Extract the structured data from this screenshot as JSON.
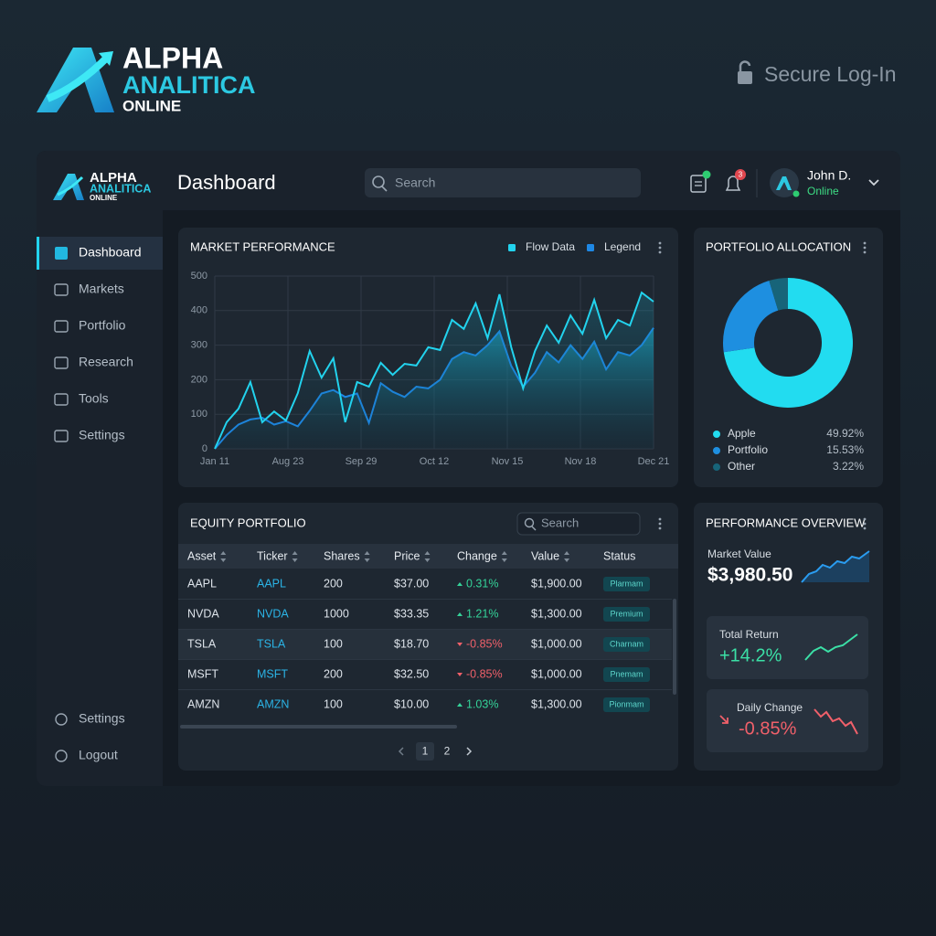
{
  "header": {
    "logo": {
      "line1": "ALPHA",
      "line2": "ANALITICA",
      "line3": "ONLINE"
    },
    "secure_login": "Secure Log-In"
  },
  "sidebar": {
    "logo": {
      "line1": "ALPHA",
      "line2": "ANALITICA",
      "line3": "ONLINE"
    },
    "nav": [
      "Dashboard",
      "Markets",
      "Portfolio",
      "Research",
      "Tools",
      "Settings"
    ],
    "active": 0,
    "bottom_nav": [
      "Settings",
      "Logout"
    ]
  },
  "topbar": {
    "title": "Dashboard",
    "search_placeholder": "Search",
    "notification_badge": "3",
    "user": {
      "name": "John D.",
      "status": "Online"
    }
  },
  "market_performance": {
    "title": "MARKET PERFORMANCE",
    "chart_data": {
      "type": "area",
      "x_labels": [
        "Jan 11",
        "Aug 23",
        "Sep 29",
        "Oct 12",
        "Nov 15",
        "Nov 18",
        "Dec 21"
      ],
      "series": [
        {
          "name": "Flow Data",
          "color": "#22d3ee",
          "values": [
            0,
            77,
            116,
            193,
            77,
            108,
            82,
            161,
            283,
            206,
            262,
            77,
            193,
            180,
            249,
            214,
            246,
            241,
            294,
            286,
            373,
            347,
            421,
            320,
            447,
            294,
            175,
            283,
            357,
            307,
            386,
            333,
            431,
            320,
            373,
            357,
            452,
            426
          ]
        },
        {
          "name": "Legend",
          "color": "#1e88e5",
          "values": [
            0,
            40,
            70,
            85,
            90,
            70,
            80,
            65,
            110,
            160,
            170,
            150,
            160,
            75,
            190,
            165,
            150,
            180,
            175,
            200,
            260,
            280,
            270,
            300,
            340,
            240,
            180,
            220,
            280,
            250,
            300,
            260,
            310,
            230,
            280,
            270,
            300,
            350
          ]
        }
      ],
      "ylim": [
        0,
        500
      ],
      "yticks": [
        0,
        100,
        200,
        300,
        400,
        500
      ],
      "grid": true
    }
  },
  "portfolio_allocation": {
    "title": "PORTFOLIO ALLOCATION",
    "chart_data": {
      "type": "donut",
      "categories": [
        "Apple",
        "Portfolio",
        "Other"
      ],
      "values": [
        49.92,
        15.53,
        3.22
      ],
      "value_labels": [
        "49.92%",
        "15.53%",
        "3.22%"
      ],
      "colors": [
        "#22dcf0",
        "#1e8fe0",
        "#176479"
      ]
    }
  },
  "equity_portfolio": {
    "title": "EQUITY PORTFOLIO",
    "search_placeholder": "Search",
    "columns": [
      "Asset",
      "Ticker",
      "Shares",
      "Price",
      "Change",
      "Value",
      "Status"
    ],
    "rows": [
      [
        "AAPL",
        "AAPL",
        "200",
        "$37.00",
        "0.31%",
        "$1,900.00",
        "Plarmam"
      ],
      [
        "NVDA",
        "NVDA",
        "1000",
        "$33.35",
        "1.21%",
        "$1,300.00",
        "Premium"
      ],
      [
        "TSLA",
        "TSLA",
        "100",
        "$18.70",
        "-0.85%",
        "$1,000.00",
        "Charnam"
      ],
      [
        "MSFT",
        "MSFT",
        "200",
        "$32.50",
        "-0.85%",
        "$1,000.00",
        "Pnemam"
      ],
      [
        "AMZN",
        "AMZN",
        "100",
        "$10.00",
        "1.03%",
        "$1,300.00",
        "Pionmam"
      ]
    ],
    "highlighted_row": 2,
    "pages": [
      "1",
      "2"
    ],
    "current_page": 0
  },
  "performance_overview": {
    "title": "PERFORMANCE OVERVIEW",
    "cards": [
      {
        "label": "Market Value",
        "value": "$3,980.50"
      },
      {
        "label": "Total Return",
        "value": "+14.2%"
      },
      {
        "label": "Daily Change",
        "value": "-0.85%"
      }
    ]
  }
}
